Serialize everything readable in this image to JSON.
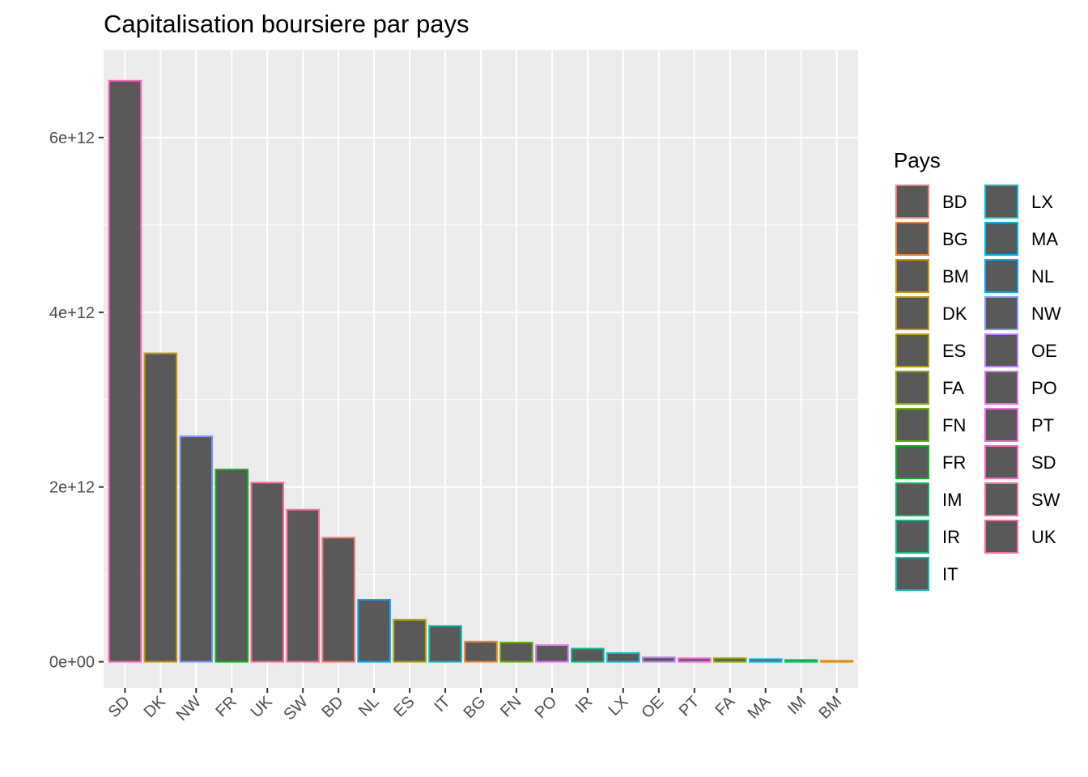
{
  "chart_data": {
    "type": "bar",
    "title": "Capitalisation boursiere par pays",
    "xlabel": "",
    "ylabel": "",
    "ylim": [
      -300000000000,
      7000000000000
    ],
    "y_ticks": [
      {
        "value": 0,
        "label": "0e+00"
      },
      {
        "value": 2000000000000,
        "label": "2e+12"
      },
      {
        "value": 4000000000000,
        "label": "4e+12"
      },
      {
        "value": 6000000000000,
        "label": "6e+12"
      }
    ],
    "grid": true,
    "legend_position": "right",
    "bar_fill": "#595959",
    "categories": [
      "SD",
      "DK",
      "NW",
      "FR",
      "UK",
      "SW",
      "BD",
      "NL",
      "ES",
      "IT",
      "BG",
      "FN",
      "PO",
      "IR",
      "LX",
      "OE",
      "PT",
      "FA",
      "MA",
      "IM",
      "BM"
    ],
    "values": [
      6650000000000,
      3530000000000,
      2580000000000,
      2200000000000,
      2050000000000,
      1740000000000,
      1420000000000,
      710000000000,
      480000000000,
      410000000000,
      230000000000,
      220000000000,
      190000000000,
      150000000000,
      100000000000,
      50000000000,
      40000000000,
      40000000000,
      30000000000,
      20000000000,
      10000000000
    ],
    "legend": {
      "title": "Pays",
      "entries": [
        {
          "label": "BD",
          "color": "#F8766D"
        },
        {
          "label": "BG",
          "color": "#EC8239"
        },
        {
          "label": "BM",
          "color": "#DB8E00"
        },
        {
          "label": "DK",
          "color": "#C79800"
        },
        {
          "label": "ES",
          "color": "#AEA200"
        },
        {
          "label": "FA",
          "color": "#8FAA00"
        },
        {
          "label": "FN",
          "color": "#64B200"
        },
        {
          "label": "FR",
          "color": "#00B81B"
        },
        {
          "label": "IM",
          "color": "#00BD5C"
        },
        {
          "label": "IR",
          "color": "#00C08D"
        },
        {
          "label": "IT",
          "color": "#00C0B4"
        },
        {
          "label": "LX",
          "color": "#00BDD4"
        },
        {
          "label": "MA",
          "color": "#00B5EE"
        },
        {
          "label": "NL",
          "color": "#00A7FF"
        },
        {
          "label": "NW",
          "color": "#7F96FF"
        },
        {
          "label": "OE",
          "color": "#BC81FF"
        },
        {
          "label": "PO",
          "color": "#E26EF7"
        },
        {
          "label": "PT",
          "color": "#F863DF"
        },
        {
          "label": "SD",
          "color": "#FF62BF"
        },
        {
          "label": "SW",
          "color": "#FF6A9A"
        },
        {
          "label": "UK",
          "color": "#FF6C91"
        }
      ]
    }
  }
}
